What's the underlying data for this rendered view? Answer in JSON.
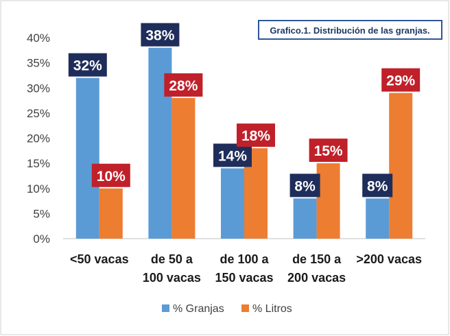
{
  "colors": {
    "series1": "#5b9bd5",
    "series2": "#ed7d31",
    "label1_bg": "#1f2d5a",
    "label2_bg": "#c0202a",
    "title_border": "#2e5597"
  },
  "chart_data": {
    "type": "bar",
    "title": "Grafico.1. Distribución de las granjas.",
    "categories": [
      [
        "<50 vacas"
      ],
      [
        "de 50 a",
        "100 vacas"
      ],
      [
        "de 100 a",
        "150 vacas"
      ],
      [
        "de 150 a",
        "200 vacas"
      ],
      [
        ">200 vacas"
      ]
    ],
    "series": [
      {
        "name": "% Granjas",
        "values": [
          32,
          38,
          14,
          8,
          8
        ],
        "labels": [
          "32%",
          "38%",
          "14%",
          "8%",
          "8%"
        ]
      },
      {
        "name": "% Litros",
        "values": [
          10,
          28,
          18,
          15,
          29
        ],
        "labels": [
          "10%",
          "28%",
          "18%",
          "15%",
          "29%"
        ]
      }
    ],
    "yticks": [
      "0%",
      "5%",
      "10%",
      "15%",
      "20%",
      "25%",
      "30%",
      "35%",
      "40%"
    ],
    "ylim": [
      0,
      40
    ],
    "xlabel": "",
    "ylabel": "",
    "legend_position": "bottom",
    "grid": false
  }
}
